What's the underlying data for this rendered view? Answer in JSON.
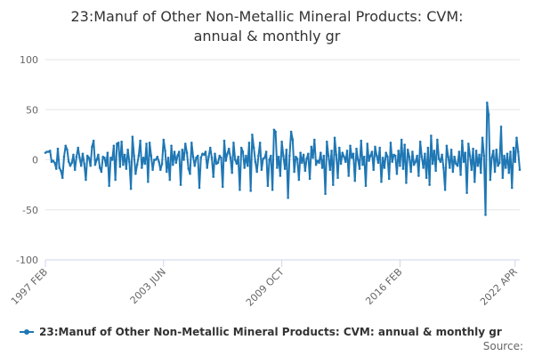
{
  "chart_data": {
    "type": "line",
    "title_lines": [
      "23:Manuf of Other Non-Metallic Mineral Products: CVM:",
      "annual & monthly gr"
    ],
    "xlabel": "",
    "ylabel": "",
    "ylim": [
      -100,
      100
    ],
    "yticks": [
      100,
      50,
      0,
      -50,
      -100
    ],
    "xticks": [
      {
        "label": "1997 FEB",
        "index": 0
      },
      {
        "label": "2003 JUN",
        "index": 76
      },
      {
        "label": "2009 OCT",
        "index": 152
      },
      {
        "label": "2016 FEB",
        "index": 228
      },
      {
        "label": "2022 APR",
        "index": 302
      }
    ],
    "series": [
      {
        "name": "23:Manuf of Other Non-Metallic Mineral Products: CVM: annual & monthly gr",
        "color": "#1f77b4",
        "start": "1997 FEB",
        "values": [
          7,
          8,
          8,
          9,
          -2,
          -1,
          -3,
          -9,
          11,
          -8,
          -11,
          -18,
          3,
          14,
          10,
          -2,
          -6,
          -3,
          5,
          -10,
          3,
          12,
          2,
          -6,
          6,
          -4,
          -20,
          4,
          2,
          -6,
          13,
          19,
          -5,
          0,
          5,
          -8,
          -12,
          3,
          2,
          -6,
          7,
          -26,
          2,
          0,
          14,
          -20,
          16,
          17,
          -7,
          18,
          -5,
          5,
          -9,
          10,
          -2,
          -29,
          23,
          4,
          -14,
          -5,
          4,
          19,
          -8,
          2,
          -4,
          16,
          -22,
          17,
          4,
          -10,
          0,
          0,
          3,
          -2,
          -10,
          -4,
          20,
          9,
          -12,
          2,
          -20,
          14,
          -5,
          8,
          -3,
          4,
          8,
          -25,
          10,
          0,
          16,
          7,
          -9,
          -14,
          17,
          3,
          -6,
          2,
          4,
          -28,
          2,
          6,
          5,
          8,
          -8,
          3,
          12,
          2,
          -17,
          6,
          -4,
          -3,
          4,
          2,
          -27,
          19,
          -1,
          6,
          11,
          2,
          -13,
          17,
          0,
          -4,
          3,
          -30,
          12,
          8,
          -8,
          4,
          -6,
          17,
          -31,
          25,
          12,
          -2,
          -12,
          4,
          17,
          -10,
          1,
          2,
          8,
          -26,
          0,
          4,
          -30,
          30,
          28,
          -8,
          3,
          -16,
          18,
          4,
          -9,
          10,
          -38,
          4,
          28,
          20,
          -12,
          3,
          1,
          -20,
          7,
          -3,
          5,
          -11,
          1,
          6,
          -19,
          13,
          2,
          20,
          -5,
          -1,
          -3,
          7,
          -8,
          4,
          -34,
          18,
          4,
          -10,
          9,
          -25,
          22,
          5,
          -18,
          12,
          -4,
          7,
          3,
          -2,
          9,
          -16,
          14,
          2,
          6,
          -21,
          11,
          0,
          -9,
          19,
          -5,
          3,
          -26,
          16,
          -1,
          4,
          8,
          -10,
          13,
          4,
          -3,
          12,
          -22,
          2,
          -8,
          7,
          3,
          -19,
          17,
          -2,
          5,
          4,
          -14,
          9,
          -6,
          20,
          -9,
          15,
          -23,
          10,
          3,
          -12,
          8,
          -5,
          -2,
          4,
          -16,
          18,
          3,
          -8,
          6,
          -18,
          12,
          -25,
          24,
          -4,
          9,
          -11,
          20,
          1,
          -2,
          5,
          -8,
          -30,
          14,
          3,
          -8,
          10,
          -12,
          3,
          -4,
          -6,
          8,
          -15,
          19,
          -2,
          7,
          -33,
          16,
          4,
          -10,
          11,
          -22,
          9,
          -6,
          5,
          -13,
          22,
          4,
          -55,
          57,
          45,
          -20,
          2,
          9,
          -12,
          10,
          -6,
          -3,
          33,
          -18,
          4,
          -8,
          6,
          -13,
          8,
          -28,
          12,
          -2,
          22,
          8,
          -10
        ]
      }
    ],
    "legend": {
      "position": "bottom",
      "label": "23:Manuf of Other Non-Metallic Mineral Products: CVM: annual & monthly gr"
    },
    "source_label": "Source:",
    "grid": true
  }
}
